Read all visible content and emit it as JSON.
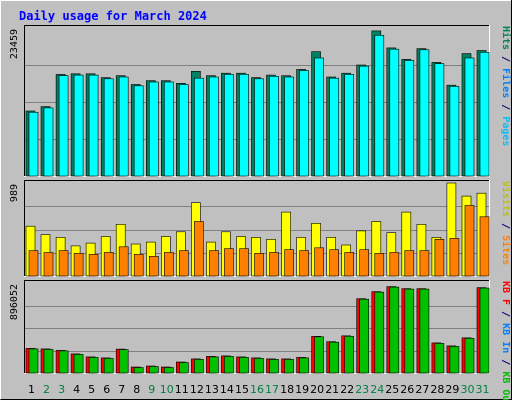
{
  "chart_data": {
    "type": "bar",
    "title": "Daily usage for March 2024",
    "categories": [
      "1",
      "2",
      "3",
      "4",
      "5",
      "6",
      "7",
      "8",
      "9",
      "10",
      "11",
      "12",
      "13",
      "14",
      "15",
      "16",
      "17",
      "18",
      "19",
      "20",
      "21",
      "22",
      "23",
      "24",
      "25",
      "26",
      "27",
      "28",
      "29",
      "30",
      "31"
    ],
    "weekend_days": [
      "2",
      "3",
      "9",
      "10",
      "16",
      "17",
      "23",
      "24",
      "30",
      "31"
    ],
    "colors": {
      "background": "#c0c0c0",
      "plot_background": "#c0c0c0",
      "title": "#0000ff",
      "weekday_label": "#000000",
      "weekend_label": "#008040",
      "gridline": "#808080"
    },
    "panels": [
      {
        "name": "requests",
        "max_label": "23459",
        "ylim": [
          0,
          23459
        ],
        "legend": [
          {
            "text": "Hits",
            "color": "#00805c"
          },
          {
            "text": " / ",
            "color": "#000080"
          },
          {
            "text": "Files",
            "color": "#0080ff"
          },
          {
            "text": " / ",
            "color": "#000080"
          },
          {
            "text": "Pages",
            "color": "#00c0ff"
          }
        ],
        "series": [
          {
            "name": "Hits",
            "color": "#008060",
            "values": [
              10300,
              11000,
              16100,
              16200,
              16200,
              15600,
              15900,
              14500,
              15100,
              15100,
              14700,
              16600,
              15900,
              16300,
              16300,
              15600,
              16000,
              15900,
              16900,
              19700,
              15700,
              16300,
              17600,
              23000,
              20300,
              18500,
              20200,
              18000,
              14400,
              19400,
              19900
            ]
          },
          {
            "name": "Files",
            "color": "#00ffff",
            "values": [
              10100,
              10800,
              15900,
              16000,
              16000,
              15400,
              15700,
              14300,
              14900,
              14900,
              14500,
              15500,
              15700,
              16100,
              16100,
              15400,
              15800,
              15700,
              16700,
              18700,
              15500,
              16100,
              17400,
              22300,
              20100,
              18300,
              20000,
              17800,
              14200,
              18700,
              19600
            ]
          }
        ]
      },
      {
        "name": "transfers",
        "max_label": "989",
        "ylim": [
          0,
          989
        ],
        "legend": [
          {
            "text": "Visits",
            "color": "#c0c000"
          },
          {
            "text": " / ",
            "color": "#000080"
          },
          {
            "text": "Sites",
            "color": "#ff8000"
          }
        ],
        "series": [
          {
            "name": "Visits",
            "color": "#ffff00",
            "values": [
              530,
              440,
              410,
              320,
              350,
              420,
              550,
              340,
              360,
              420,
              470,
              780,
              360,
              470,
              420,
              410,
              390,
              680,
              410,
              560,
              410,
              330,
              480,
              580,
              460,
              680,
              550,
              410,
              989,
              850,
              880
            ]
          },
          {
            "name": "Sites",
            "color": "#ff8000",
            "values": [
              270,
              250,
              270,
              240,
              230,
              250,
              310,
              230,
              210,
              250,
              270,
              580,
              270,
              290,
              290,
              240,
              250,
              280,
              270,
              300,
              280,
              250,
              280,
              240,
              250,
              270,
              270,
              390,
              400,
              750,
              630
            ]
          }
        ]
      },
      {
        "name": "volume",
        "max_label": "896052",
        "ylim": [
          0,
          896052
        ],
        "legend": [
          {
            "text": "KB F",
            "color": "#ff0000"
          },
          {
            "text": " / ",
            "color": "#000080"
          },
          {
            "text": "KB In",
            "color": "#0080ff"
          },
          {
            "text": " / ",
            "color": "#000080"
          },
          {
            "text": "KB Out",
            "color": "#00c000"
          }
        ],
        "series": [
          {
            "name": "KB F",
            "color": "#ff0000",
            "values": [
              245000,
              240000,
              225000,
              190000,
              160000,
              150000,
              238000,
              60000,
              70000,
              60000,
              110000,
              140000,
              165000,
              170000,
              160000,
              150000,
              140000,
              140000,
              155000,
              365000,
              312000,
              370000,
              740000,
              810000,
              860000,
              840000,
              840000,
              300000,
              270000,
              350000,
              850000
            ]
          },
          {
            "name": "KB Out",
            "color": "#00c000",
            "values": [
              240000,
              235000,
              220000,
              185000,
              155000,
              145000,
              233000,
              55000,
              65000,
              55000,
              105000,
              135000,
              160000,
              165000,
              155000,
              145000,
              135000,
              135000,
              150000,
              360000,
              307000,
              365000,
              735000,
              805000,
              855000,
              835000,
              835000,
              295000,
              265000,
              345000,
              845000
            ]
          }
        ]
      }
    ]
  }
}
